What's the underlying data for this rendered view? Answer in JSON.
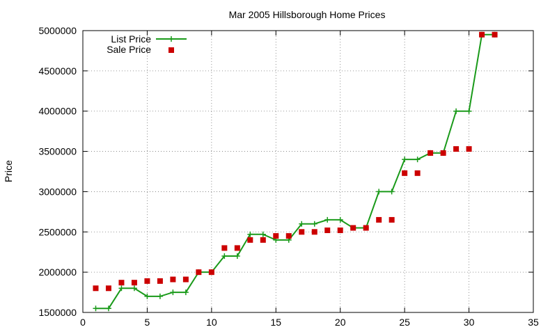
{
  "chart_data": {
    "type": "line",
    "title": "Mar 2005 Hillsborough Home Prices",
    "xlabel": "",
    "ylabel": "Price",
    "xlim": [
      0,
      35
    ],
    "ylim": [
      1500000,
      5000000
    ],
    "xticks": [
      0,
      5,
      10,
      15,
      20,
      25,
      30,
      35
    ],
    "yticks": [
      1500000,
      2000000,
      2500000,
      3000000,
      3500000,
      4000000,
      4500000,
      5000000
    ],
    "xtick_labels": [
      "0",
      "5",
      "10",
      "15",
      "20",
      "25",
      "30",
      "35"
    ],
    "ytick_labels": [
      "1500000",
      "2000000",
      "2500000",
      "3000000",
      "3500000",
      "4000000",
      "4500000",
      "5000000"
    ],
    "grid": true,
    "legend_position": "top-left",
    "series": [
      {
        "name": "List Price",
        "style": "line-with-plus-markers",
        "color": "#1a9a1a",
        "x": [
          1,
          2,
          3,
          4,
          5,
          6,
          7,
          8,
          9,
          10,
          11,
          12,
          13,
          14,
          15,
          16,
          17,
          18,
          19,
          20,
          21,
          22,
          23,
          24,
          25,
          26,
          27,
          28,
          29,
          30,
          31,
          32
        ],
        "values": [
          1550000,
          1550000,
          1800000,
          1800000,
          1700000,
          1700000,
          1750000,
          1750000,
          2000000,
          2000000,
          2200000,
          2200000,
          2470000,
          2470000,
          2400000,
          2400000,
          2600000,
          2600000,
          2650000,
          2650000,
          2550000,
          2550000,
          3000000,
          3000000,
          3400000,
          3400000,
          3480000,
          3480000,
          4000000,
          4000000,
          4950000,
          4950000
        ]
      },
      {
        "name": "Sale Price",
        "style": "square-markers",
        "color": "#cc0000",
        "x": [
          1,
          2,
          3,
          4,
          5,
          6,
          7,
          8,
          9,
          10,
          11,
          12,
          13,
          14,
          15,
          16,
          17,
          18,
          19,
          20,
          21,
          22,
          23,
          24,
          25,
          26,
          27,
          28,
          29,
          30,
          31,
          32
        ],
        "values": [
          1800000,
          1800000,
          1870000,
          1870000,
          1890000,
          1890000,
          1910000,
          1910000,
          2000000,
          2000000,
          2300000,
          2300000,
          2400000,
          2400000,
          2450000,
          2450000,
          2500000,
          2500000,
          2520000,
          2520000,
          2550000,
          2550000,
          2650000,
          2650000,
          3230000,
          3230000,
          3480000,
          3480000,
          3530000,
          3530000,
          4950000,
          4950000
        ]
      }
    ]
  }
}
